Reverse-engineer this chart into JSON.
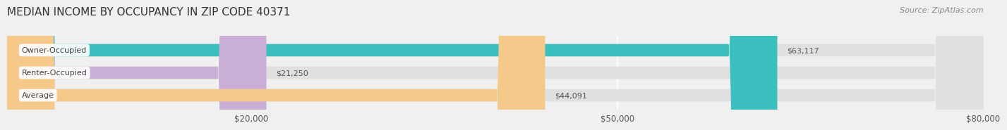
{
  "title": "MEDIAN INCOME BY OCCUPANCY IN ZIP CODE 40371",
  "source": "Source: ZipAtlas.com",
  "categories": [
    "Owner-Occupied",
    "Renter-Occupied",
    "Average"
  ],
  "values": [
    63117,
    21250,
    44091
  ],
  "bar_colors": [
    "#3bbfbf",
    "#c9aed6",
    "#f5c98a"
  ],
  "value_labels": [
    "$63,117",
    "$21,250",
    "$44,091"
  ],
  "xlim": [
    0,
    80000
  ],
  "xticks": [
    20000,
    50000,
    80000
  ],
  "xtick_labels": [
    "$20,000",
    "$50,000",
    "$80,000"
  ],
  "background_color": "#f0f0f0",
  "bar_background_color": "#e0e0e0",
  "title_fontsize": 11,
  "source_fontsize": 8,
  "bar_height": 0.55,
  "fig_width": 14.06,
  "fig_height": 1.96
}
